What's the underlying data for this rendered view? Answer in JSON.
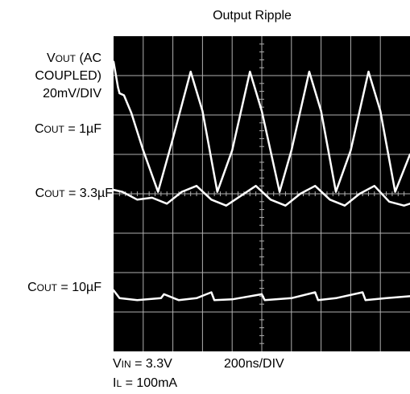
{
  "chart_data": {
    "type": "line",
    "title": "Output Ripple",
    "ylabel": {
      "line1_cap": "V",
      "line1_sc": "OUT",
      "line1_rest": " (AC",
      "line2": "COUPLED)",
      "line3": "20mV/DIV"
    },
    "xlabel": "200ns/DIV",
    "conditions": {
      "vin_cap": "V",
      "vin_sc": "IN",
      "vin_rest": " = 3.3V",
      "il_cap": "I",
      "il_sc": "L",
      "il_rest": " = 100mA"
    },
    "divisions": {
      "x": 10,
      "y": 8
    },
    "grid": true,
    "background": "#000000",
    "trace_color": "#ffffff",
    "series": [
      {
        "name_cap": "C",
        "name_sc": "OUT",
        "name_rest": " = 1µF",
        "x": [
          0,
          0.15,
          0.2,
          0.35,
          0.6,
          1.0,
          1.5,
          2.0,
          2.6,
          3.0,
          3.5,
          4.0,
          4.6,
          5.0,
          5.6,
          6.0,
          6.6,
          7.0,
          7.5,
          8.0,
          8.6,
          9.0,
          9.5,
          10.0
        ],
        "values": [
          1.35,
          0.7,
          0.55,
          0.5,
          0.05,
          -0.9,
          -1.95,
          -0.6,
          1.1,
          0.1,
          -1.95,
          -0.9,
          1.1,
          0.1,
          -1.95,
          -0.9,
          1.1,
          0.1,
          -1.95,
          -0.9,
          1.1,
          0.1,
          -1.95,
          -1.0
        ]
      },
      {
        "name_cap": "C",
        "name_sc": "OUT",
        "name_rest": " = 3.3µF",
        "x": [
          0,
          0.3,
          0.8,
          1.3,
          1.8,
          2.3,
          2.8,
          3.3,
          3.8,
          4.3,
          4.8,
          5.3,
          5.8,
          6.3,
          6.8,
          7.3,
          7.8,
          8.3,
          8.8,
          9.3,
          9.8,
          10.0
        ],
        "values": [
          0.1,
          0.05,
          -0.15,
          -0.1,
          -0.25,
          0.05,
          0.2,
          -0.15,
          -0.3,
          -0.05,
          0.2,
          -0.15,
          -0.3,
          0.0,
          0.2,
          -0.15,
          -0.3,
          0.0,
          0.2,
          -0.2,
          -0.3,
          -0.25
        ]
      },
      {
        "name_cap": "C",
        "name_sc": "OUT",
        "name_rest": " = 10µF",
        "x": [
          0,
          0.2,
          0.8,
          1.6,
          1.7,
          2.2,
          2.8,
          3.3,
          3.4,
          4.0,
          5.0,
          5.1,
          6.0,
          6.8,
          6.9,
          7.5,
          8.4,
          8.5,
          9.2,
          10.0
        ],
        "values": [
          0.15,
          -0.05,
          -0.1,
          -0.05,
          0.05,
          -0.1,
          -0.05,
          0.1,
          -0.1,
          -0.08,
          0.05,
          -0.1,
          -0.05,
          0.1,
          -0.1,
          -0.05,
          0.1,
          -0.1,
          -0.05,
          0.0
        ]
      }
    ]
  }
}
